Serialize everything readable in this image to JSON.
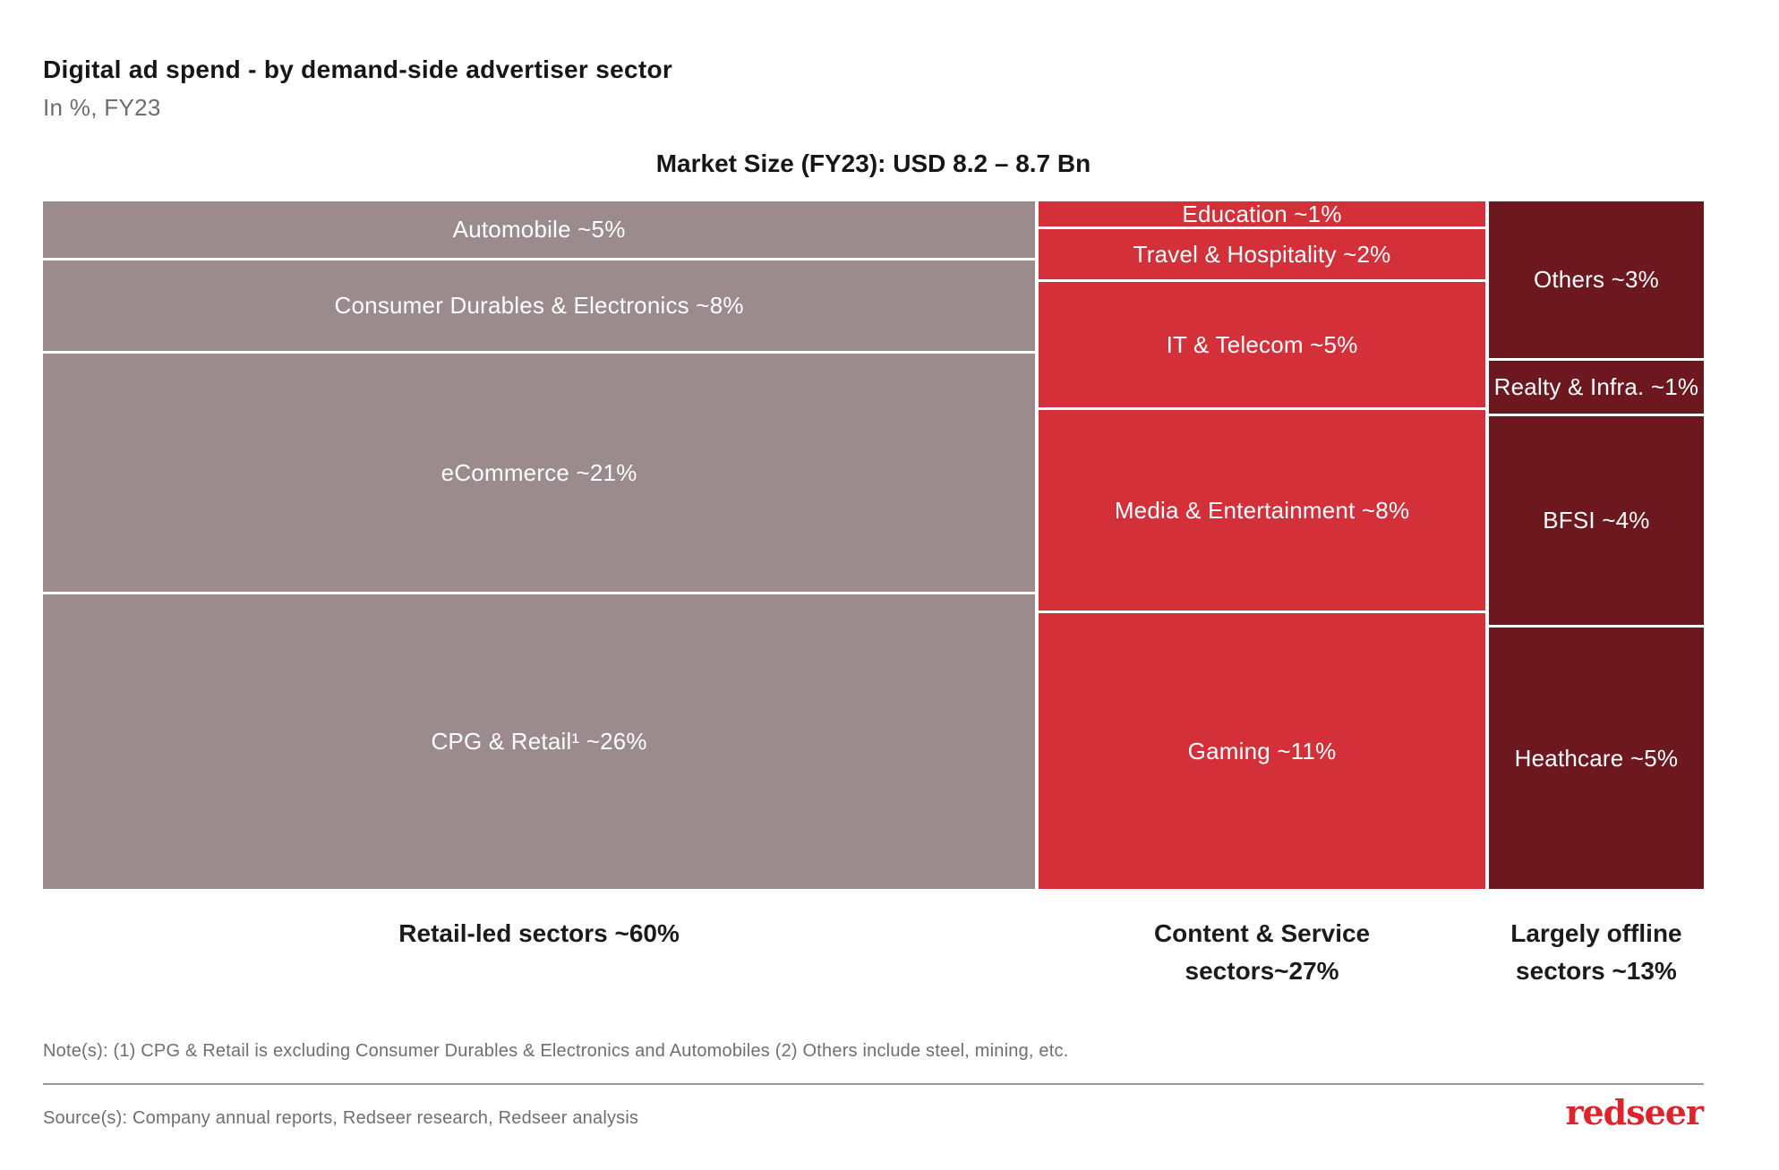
{
  "header": {
    "title": "Digital ad spend - by demand-side advertiser sector",
    "subtitle": "In %, FY23",
    "market_size_label": "Market Size (FY23): USD 8.2 – 8.7 Bn"
  },
  "chart_data": {
    "type": "bar",
    "variant": "marimekko-100pct-stacked",
    "unit": "% of digital ad spend, FY23",
    "title": "Market Size (FY23): USD 8.2 – 8.7 Bn",
    "layout": {
      "column_width_proportional_to": "total_pct",
      "segment_height_proportional_to": "value_pct within column",
      "segment_label_color": "#FFFFFF",
      "gap_color": "#FFFFFF",
      "axes": "none",
      "grid": false,
      "legend": "none"
    },
    "columns": [
      {
        "group_label": "Retail-led sectors ~60%",
        "group_label_lines": "Retail-led sectors ~60%",
        "total_pct": 60,
        "color": "#9B8B8D",
        "segments": [
          {
            "label": "Automobile ~5%",
            "value_pct": 5
          },
          {
            "label": "Consumer Durables & Electronics ~8%",
            "value_pct": 8
          },
          {
            "label": "eCommerce ~21%",
            "value_pct": 21
          },
          {
            "label": "CPG & Retail¹ ~26%",
            "value_pct": 26
          }
        ]
      },
      {
        "group_label": "Content & Service sectors~27%",
        "group_label_lines": "Content & Service\nsectors~27%",
        "total_pct": 27,
        "color": "#D3303A",
        "segments": [
          {
            "label": "Education ~1%",
            "value_pct": 1
          },
          {
            "label": "Travel & Hospitality ~2%",
            "value_pct": 2
          },
          {
            "label": "IT & Telecom ~5%",
            "value_pct": 5
          },
          {
            "label": "Media & Entertainment ~8%",
            "value_pct": 8
          },
          {
            "label": "Gaming ~11%",
            "value_pct": 11
          }
        ]
      },
      {
        "group_label": "Largely offline sectors ~13%",
        "group_label_lines": "Largely offline\nsectors ~13%",
        "total_pct": 13,
        "color": "#6C181E",
        "segments": [
          {
            "label": "Others ~3%",
            "value_pct": 3
          },
          {
            "label": "Realty & Infra. ~1%",
            "value_pct": 1
          },
          {
            "label": "BFSI ~4%",
            "value_pct": 4
          },
          {
            "label": "Heathcare ~5%",
            "value_pct": 5
          }
        ]
      }
    ]
  },
  "footer": {
    "note": "Note(s): (1) CPG & Retail is excluding Consumer Durables & Electronics and Automobiles (2) Others include steel, mining, etc.",
    "source": "Source(s): Company annual reports, Redseer research, Redseer analysis",
    "logo_text": "redseer",
    "logo_color": "#E0232B"
  }
}
